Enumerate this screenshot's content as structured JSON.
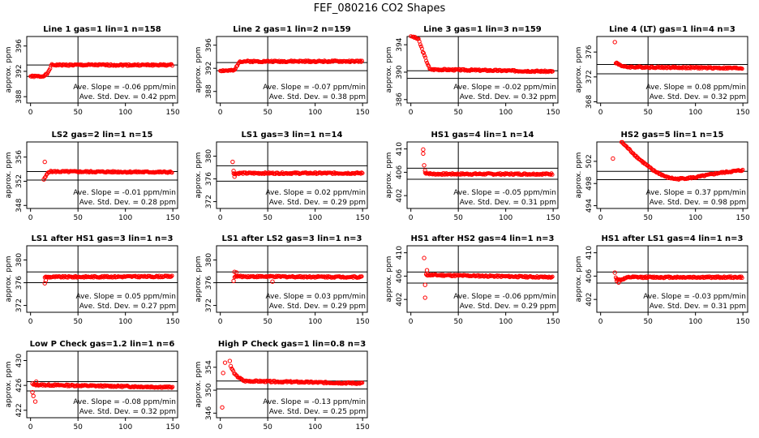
{
  "figure_title": "FEF_080216  CO2 Shapes",
  "style": {
    "point_color": "#ff0000",
    "line_color": "#000000",
    "axis_color": "#000000"
  },
  "annotation_labels": {
    "slope_prefix": "Ave. Slope = ",
    "slope_unit": " ppm/min",
    "sd_prefix": "Ave. Std. Dev. = ",
    "sd_unit": " ppm"
  },
  "chart_data": [
    {
      "type": "scatter",
      "title": "Line 1 gas=1 lin=1 n=158",
      "ylabel": "approx. ppm",
      "xlim": [
        -4,
        155
      ],
      "ylim": [
        387,
        397.5
      ],
      "xticks": [
        0,
        50,
        100,
        150
      ],
      "yticks": [
        388,
        392,
        396
      ],
      "hlines": [
        393.0,
        391.2
      ],
      "vline": 50,
      "slope": "-0.06",
      "std_dev": "0.42",
      "shape": [
        [
          0,
          391.2
        ],
        [
          12,
          391.2
        ],
        [
          18,
          391.6
        ],
        [
          22,
          393.0
        ],
        [
          150,
          393.0
        ]
      ],
      "seed": 1
    },
    {
      "type": "scatter",
      "title": "Line 2 gas=1 lin=2 n=159",
      "ylabel": "approx. ppm",
      "xlim": [
        -4,
        155
      ],
      "ylim": [
        386,
        397.5
      ],
      "xticks": [
        0,
        50,
        100,
        150
      ],
      "yticks": [
        388,
        392,
        396
      ],
      "hlines": [
        393.0,
        391.6
      ],
      "vline": 50,
      "slope": "-0.07",
      "std_dev": "0.38",
      "shape": [
        [
          0,
          391.6
        ],
        [
          15,
          391.6
        ],
        [
          20,
          393.2
        ],
        [
          150,
          393.2
        ]
      ],
      "seed": 2
    },
    {
      "type": "scatter",
      "title": "Line 3 gas=1 lin=3 n=159",
      "ylabel": "approx. ppm",
      "xlim": [
        -4,
        155
      ],
      "ylim": [
        385.5,
        395.2
      ],
      "xticks": [
        0,
        50,
        100,
        150
      ],
      "yticks": [
        386,
        390,
        394
      ],
      "hlines": [
        390.2,
        389.1
      ],
      "vline": 50,
      "slope": "-0.02",
      "std_dev": "0.32",
      "shape": [
        [
          0,
          395.3
        ],
        [
          8,
          394.8
        ],
        [
          14,
          392.5
        ],
        [
          20,
          390.4
        ],
        [
          150,
          390.1
        ]
      ],
      "seed": 3
    },
    {
      "type": "scatter",
      "title": "Line 4 (LT) gas=1 lin=4 n=3",
      "ylabel": "approx. ppm",
      "xlim": [
        -4,
        155
      ],
      "ylim": [
        367.8,
        378.5
      ],
      "xticks": [
        0,
        50,
        100,
        150
      ],
      "yticks": [
        368,
        372,
        376
      ],
      "hlines": [
        374.0,
        372.5
      ],
      "vline": 50,
      "slope": "0.08",
      "std_dev": "0.32",
      "shape": [
        [
          16,
          374.3
        ],
        [
          25,
          373.6
        ],
        [
          150,
          373.4
        ]
      ],
      "outliers": [
        [
          15,
          377.6
        ],
        [
          17,
          374.2
        ],
        [
          19,
          374.0
        ]
      ],
      "seed": 4
    },
    {
      "type": "scatter",
      "title": "LS2 gas=2 lin=1 n=15",
      "ylabel": "approx. ppm",
      "xlim": [
        -4,
        155
      ],
      "ylim": [
        347.5,
        358.5
      ],
      "xticks": [
        0,
        50,
        100,
        150
      ],
      "yticks": [
        348,
        352,
        356
      ],
      "hlines": [
        353.6,
        352.2
      ],
      "vline": 50,
      "slope": "-0.01",
      "std_dev": "0.28",
      "shape": [
        [
          15,
          352.5
        ],
        [
          19,
          353.6
        ],
        [
          150,
          353.5
        ]
      ],
      "outliers": [
        [
          15,
          355.2
        ],
        [
          14,
          352.3
        ]
      ],
      "seed": 5
    },
    {
      "type": "scatter",
      "title": "LS1 gas=3 lin=1 n=14",
      "ylabel": "approx. ppm",
      "xlim": [
        -4,
        155
      ],
      "ylim": [
        370.8,
        382.5
      ],
      "xticks": [
        0,
        50,
        100,
        150
      ],
      "yticks": [
        372,
        376,
        380
      ],
      "hlines": [
        378.3,
        375.6
      ],
      "vline": 50,
      "slope": "0.02",
      "std_dev": "0.29",
      "shape": [
        [
          14,
          376.9
        ],
        [
          20,
          377.0
        ],
        [
          150,
          377.0
        ]
      ],
      "outliers": [
        [
          13,
          379.0
        ],
        [
          14,
          377.4
        ],
        [
          15,
          376.4
        ]
      ],
      "seed": 6
    },
    {
      "type": "scatter",
      "title": "HS1 gas=4 lin=1 n=14",
      "ylabel": "approx. ppm",
      "xlim": [
        -4,
        155
      ],
      "ylim": [
        399.8,
        411.2
      ],
      "xticks": [
        0,
        50,
        100,
        150
      ],
      "yticks": [
        402,
        406,
        410
      ],
      "hlines": [
        406.7,
        404.8
      ],
      "vline": 50,
      "slope": "-0.05",
      "std_dev": "0.31",
      "shape": [
        [
          15,
          405.9
        ],
        [
          22,
          405.7
        ],
        [
          150,
          405.7
        ]
      ],
      "outliers": [
        [
          13,
          409.9
        ],
        [
          13,
          409.2
        ],
        [
          14,
          407.2
        ],
        [
          15,
          406.3
        ]
      ],
      "seed": 7
    },
    {
      "type": "scatter",
      "title": "HS2 gas=5 lin=1 n=15",
      "ylabel": "approx. ppm",
      "xlim": [
        -4,
        155
      ],
      "ylim": [
        493.5,
        505.5
      ],
      "xticks": [
        0,
        50,
        100,
        150
      ],
      "yticks": [
        494,
        498,
        502
      ],
      "hlines": [
        500.2,
        498.7
      ],
      "vline": 50,
      "slope": "0.37",
      "std_dev": "0.98",
      "shape": [
        [
          22,
          505.5
        ],
        [
          40,
          502.5
        ],
        [
          55,
          500.4
        ],
        [
          70,
          499.1
        ],
        [
          80,
          498.8
        ],
        [
          100,
          499.1
        ],
        [
          125,
          499.9
        ],
        [
          150,
          500.4
        ]
      ],
      "outliers": [
        [
          13,
          502.5
        ]
      ],
      "seed": 8
    },
    {
      "type": "scatter",
      "title": "LS1 after HS1 gas=3 lin=1 n=3",
      "ylabel": "approx. ppm",
      "xlim": [
        -4,
        155
      ],
      "ylim": [
        370.8,
        382.5
      ],
      "xticks": [
        0,
        50,
        100,
        150
      ],
      "yticks": [
        372,
        376,
        380
      ],
      "hlines": [
        377.9,
        376.0
      ],
      "vline": 50,
      "slope": "0.05",
      "std_dev": "0.27",
      "shape": [
        [
          15,
          377.0
        ],
        [
          150,
          377.1
        ]
      ],
      "outliers": [
        [
          15,
          375.9
        ],
        [
          16,
          376.4
        ]
      ],
      "seed": 9
    },
    {
      "type": "scatter",
      "title": "LS1 after LS2 gas=3 lin=1 n=3",
      "ylabel": "approx. ppm",
      "xlim": [
        -4,
        155
      ],
      "ylim": [
        370.8,
        382.5
      ],
      "xticks": [
        0,
        50,
        100,
        150
      ],
      "yticks": [
        372,
        376,
        380
      ],
      "hlines": [
        377.9,
        376.0
      ],
      "vline": 50,
      "slope": "0.03",
      "std_dev": "0.29",
      "shape": [
        [
          15,
          377.1
        ],
        [
          150,
          377.0
        ]
      ],
      "outliers": [
        [
          15,
          377.9
        ],
        [
          14,
          376.3
        ],
        [
          17,
          377.8
        ],
        [
          55,
          376.2
        ]
      ],
      "seed": 10
    },
    {
      "type": "scatter",
      "title": "HS1 after HS2 gas=4 lin=1 n=3",
      "ylabel": "approx. ppm",
      "xlim": [
        -4,
        155
      ],
      "ylim": [
        399.8,
        411.2
      ],
      "xticks": [
        0,
        50,
        100,
        150
      ],
      "yticks": [
        402,
        406,
        410
      ],
      "hlines": [
        406.7,
        404.8
      ],
      "vline": 50,
      "slope": "-0.06",
      "std_dev": "0.29",
      "shape": [
        [
          16,
          406.2
        ],
        [
          150,
          405.8
        ]
      ],
      "outliers": [
        [
          14,
          409.1
        ],
        [
          15,
          404.5
        ],
        [
          15,
          402.3
        ],
        [
          17,
          407.0
        ]
      ],
      "seed": 11
    },
    {
      "type": "scatter",
      "title": "HS1 after LS1 gas=4 lin=1 n=3",
      "ylabel": "approx. ppm",
      "xlim": [
        -4,
        155
      ],
      "ylim": [
        399.8,
        411.2
      ],
      "xticks": [
        0,
        50,
        100,
        150
      ],
      "yticks": [
        402,
        406,
        410
      ],
      "hlines": [
        406.7,
        404.8
      ],
      "vline": 50,
      "slope": "-0.03",
      "std_dev": "0.31",
      "shape": [
        [
          16,
          405.7
        ],
        [
          20,
          405.3
        ],
        [
          30,
          405.8
        ],
        [
          150,
          405.8
        ]
      ],
      "outliers": [
        [
          15,
          406.6
        ],
        [
          17,
          405.2
        ],
        [
          19,
          404.9
        ]
      ],
      "seed": 12
    },
    {
      "type": "scatter",
      "title": "Low P Check gas=1.2 lin=1 n=6",
      "ylabel": "approx. ppm",
      "xlim": [
        -4,
        155
      ],
      "ylim": [
        420.8,
        431.5
      ],
      "xticks": [
        0,
        50,
        100,
        150
      ],
      "yticks": [
        422,
        426,
        430
      ],
      "hlines": [
        426.6,
        425.1
      ],
      "vline": 50,
      "slope": "-0.08",
      "std_dev": "0.32",
      "shape": [
        [
          3,
          426.1
        ],
        [
          150,
          425.7
        ]
      ],
      "outliers": [
        [
          2,
          424.9
        ],
        [
          3,
          424.3
        ],
        [
          5,
          423.4
        ],
        [
          2,
          426.3
        ],
        [
          6,
          426.6
        ]
      ],
      "seed": 13
    },
    {
      "type": "scatter",
      "title": "High P Check gas=1 lin=0.8 n=3",
      "ylabel": "approx. ppm",
      "xlim": [
        -4,
        155
      ],
      "ylim": [
        345.2,
        356.8
      ],
      "xticks": [
        0,
        50,
        100,
        150
      ],
      "yticks": [
        346,
        350,
        354
      ],
      "hlines": [
        351.6,
        350.2
      ],
      "vline": 50,
      "slope": "-0.13",
      "std_dev": "0.25",
      "shape": [
        [
          12,
          353.8
        ],
        [
          16,
          352.6
        ],
        [
          25,
          351.6
        ],
        [
          150,
          351.2
        ]
      ],
      "outliers": [
        [
          2,
          347.0
        ],
        [
          3,
          353.0
        ],
        [
          5,
          354.8
        ],
        [
          10,
          355.1
        ],
        [
          11,
          354.2
        ]
      ],
      "seed": 14
    }
  ]
}
